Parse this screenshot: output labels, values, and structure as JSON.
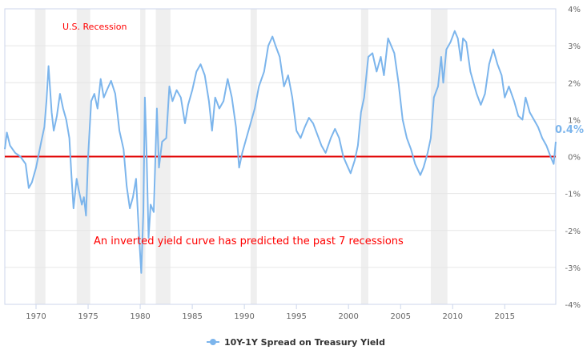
{
  "chart_data": {
    "type": "line",
    "title": "",
    "xlabel": "",
    "ylabel": "",
    "xlim": [
      1967.0,
      2019.9
    ],
    "ylim": [
      -4,
      4
    ],
    "grid": true,
    "legend_placement": "bottom",
    "x_ticks": [
      "1970",
      "1975",
      "1980",
      "1985",
      "1990",
      "1995",
      "2000",
      "2005",
      "2010",
      "2015"
    ],
    "y_ticks": [
      "4%",
      "3%",
      "2%",
      "1%",
      "0%",
      "-1%",
      "-2%",
      "-3%",
      "-4%"
    ],
    "y_tick_values": [
      4,
      3,
      2,
      1,
      0,
      -1,
      -2,
      -3,
      -4
    ],
    "last_value_label": "0.4%",
    "recession_label": "U.S. Recession",
    "annotation": "An inverted yield curve has predicted the past 7 recessions",
    "colors": {
      "series": "#7cb5ec",
      "zero_line": "#e00000",
      "recession": "#efefef",
      "annotation": "#ff0000"
    },
    "recessions": [
      [
        1969.9,
        1970.9
      ],
      [
        1973.9,
        1975.2
      ],
      [
        1980.0,
        1980.5
      ],
      [
        1981.5,
        1982.9
      ],
      [
        1990.6,
        1991.2
      ],
      [
        2001.2,
        2001.9
      ],
      [
        2007.9,
        2009.5
      ]
    ],
    "series": [
      {
        "name": "10Y-1Y Spread on Treasury Yield",
        "points": [
          [
            1967.0,
            0.2
          ],
          [
            1967.2,
            0.65
          ],
          [
            1967.5,
            0.3
          ],
          [
            1968.0,
            0.1
          ],
          [
            1968.5,
            0.0
          ],
          [
            1969.0,
            -0.2
          ],
          [
            1969.3,
            -0.85
          ],
          [
            1969.6,
            -0.7
          ],
          [
            1970.0,
            -0.3
          ],
          [
            1970.5,
            0.4
          ],
          [
            1970.8,
            0.8
          ],
          [
            1971.0,
            1.5
          ],
          [
            1971.2,
            2.45
          ],
          [
            1971.5,
            1.2
          ],
          [
            1971.7,
            0.7
          ],
          [
            1972.0,
            1.1
          ],
          [
            1972.3,
            1.7
          ],
          [
            1972.6,
            1.3
          ],
          [
            1972.9,
            1.0
          ],
          [
            1973.2,
            0.5
          ],
          [
            1973.4,
            -0.5
          ],
          [
            1973.6,
            -1.4
          ],
          [
            1973.9,
            -0.6
          ],
          [
            1974.1,
            -0.9
          ],
          [
            1974.4,
            -1.3
          ],
          [
            1974.6,
            -1.1
          ],
          [
            1974.8,
            -1.6
          ],
          [
            1975.0,
            0.0
          ],
          [
            1975.3,
            1.5
          ],
          [
            1975.6,
            1.7
          ],
          [
            1975.9,
            1.3
          ],
          [
            1976.2,
            2.1
          ],
          [
            1976.5,
            1.6
          ],
          [
            1976.8,
            1.8
          ],
          [
            1977.2,
            2.05
          ],
          [
            1977.6,
            1.7
          ],
          [
            1978.0,
            0.7
          ],
          [
            1978.4,
            0.2
          ],
          [
            1978.7,
            -0.8
          ],
          [
            1979.0,
            -1.4
          ],
          [
            1979.3,
            -1.1
          ],
          [
            1979.6,
            -0.6
          ],
          [
            1979.9,
            -2.2
          ],
          [
            1980.1,
            -3.15
          ],
          [
            1980.3,
            -1.5
          ],
          [
            1980.45,
            1.6
          ],
          [
            1980.6,
            0.2
          ],
          [
            1980.8,
            -2.2
          ],
          [
            1981.0,
            -1.3
          ],
          [
            1981.3,
            -1.5
          ],
          [
            1981.6,
            1.3
          ],
          [
            1981.8,
            -0.3
          ],
          [
            1982.1,
            0.4
          ],
          [
            1982.5,
            0.5
          ],
          [
            1982.8,
            1.9
          ],
          [
            1983.1,
            1.5
          ],
          [
            1983.5,
            1.8
          ],
          [
            1983.9,
            1.6
          ],
          [
            1984.3,
            0.9
          ],
          [
            1984.6,
            1.4
          ],
          [
            1985.0,
            1.8
          ],
          [
            1985.4,
            2.3
          ],
          [
            1985.8,
            2.5
          ],
          [
            1986.2,
            2.2
          ],
          [
            1986.6,
            1.5
          ],
          [
            1986.9,
            0.7
          ],
          [
            1987.2,
            1.6
          ],
          [
            1987.6,
            1.3
          ],
          [
            1988.0,
            1.5
          ],
          [
            1988.4,
            2.1
          ],
          [
            1988.8,
            1.6
          ],
          [
            1989.2,
            0.8
          ],
          [
            1989.5,
            -0.3
          ],
          [
            1989.8,
            0.1
          ],
          [
            1990.2,
            0.5
          ],
          [
            1990.6,
            0.9
          ],
          [
            1991.0,
            1.3
          ],
          [
            1991.4,
            1.9
          ],
          [
            1991.9,
            2.3
          ],
          [
            1992.3,
            3.0
          ],
          [
            1992.7,
            3.25
          ],
          [
            1993.0,
            3.0
          ],
          [
            1993.4,
            2.7
          ],
          [
            1993.8,
            1.9
          ],
          [
            1994.2,
            2.2
          ],
          [
            1994.6,
            1.6
          ],
          [
            1995.0,
            0.7
          ],
          [
            1995.4,
            0.5
          ],
          [
            1995.8,
            0.8
          ],
          [
            1996.2,
            1.05
          ],
          [
            1996.6,
            0.9
          ],
          [
            1997.0,
            0.6
          ],
          [
            1997.4,
            0.3
          ],
          [
            1997.8,
            0.1
          ],
          [
            1998.3,
            0.5
          ],
          [
            1998.7,
            0.75
          ],
          [
            1999.1,
            0.5
          ],
          [
            1999.5,
            0.0
          ],
          [
            1999.8,
            -0.2
          ],
          [
            2000.2,
            -0.45
          ],
          [
            2000.6,
            -0.1
          ],
          [
            2000.9,
            0.3
          ],
          [
            2001.2,
            1.2
          ],
          [
            2001.5,
            1.6
          ],
          [
            2001.9,
            2.7
          ],
          [
            2002.3,
            2.8
          ],
          [
            2002.7,
            2.3
          ],
          [
            2003.1,
            2.7
          ],
          [
            2003.4,
            2.2
          ],
          [
            2003.8,
            3.2
          ],
          [
            2004.1,
            3.0
          ],
          [
            2004.4,
            2.8
          ],
          [
            2004.8,
            2.0
          ],
          [
            2005.2,
            1.0
          ],
          [
            2005.6,
            0.5
          ],
          [
            2006.0,
            0.2
          ],
          [
            2006.4,
            -0.2
          ],
          [
            2006.9,
            -0.5
          ],
          [
            2007.2,
            -0.3
          ],
          [
            2007.6,
            0.1
          ],
          [
            2007.9,
            0.5
          ],
          [
            2008.2,
            1.6
          ],
          [
            2008.6,
            1.9
          ],
          [
            2008.9,
            2.7
          ],
          [
            2009.1,
            2.0
          ],
          [
            2009.4,
            2.9
          ],
          [
            2009.8,
            3.1
          ],
          [
            2010.2,
            3.4
          ],
          [
            2010.5,
            3.2
          ],
          [
            2010.8,
            2.6
          ],
          [
            2011.0,
            3.2
          ],
          [
            2011.3,
            3.1
          ],
          [
            2011.7,
            2.3
          ],
          [
            2012.0,
            2.0
          ],
          [
            2012.3,
            1.7
          ],
          [
            2012.7,
            1.4
          ],
          [
            2013.1,
            1.7
          ],
          [
            2013.5,
            2.5
          ],
          [
            2013.9,
            2.9
          ],
          [
            2014.3,
            2.5
          ],
          [
            2014.7,
            2.2
          ],
          [
            2015.0,
            1.6
          ],
          [
            2015.4,
            1.9
          ],
          [
            2015.9,
            1.5
          ],
          [
            2016.3,
            1.1
          ],
          [
            2016.7,
            1.0
          ],
          [
            2017.0,
            1.6
          ],
          [
            2017.4,
            1.2
          ],
          [
            2017.8,
            1.0
          ],
          [
            2018.2,
            0.8
          ],
          [
            2018.6,
            0.5
          ],
          [
            2019.0,
            0.3
          ],
          [
            2019.4,
            0.0
          ],
          [
            2019.7,
            -0.2
          ],
          [
            2019.9,
            0.4
          ]
        ]
      }
    ]
  }
}
